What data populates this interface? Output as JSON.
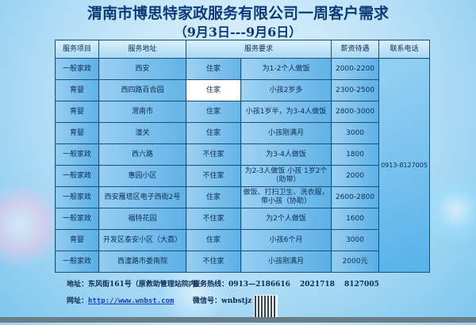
{
  "header": {
    "title": "渭南市博思特家政服务有限公司一周客户需求",
    "subtitle": "（9月3日---9月6日）"
  },
  "table": {
    "columns": [
      "服务项目",
      "服务地址",
      "服务要求",
      "薪资待遇",
      "联系电话"
    ],
    "phone": "0913-8127005",
    "rows": [
      {
        "type": "一般家政",
        "address": "西安",
        "live": "住家",
        "req": "为1-2个人做饭",
        "salary": "2000-2200"
      },
      {
        "type": "育婴",
        "address": "西四路百合园",
        "live": "住家",
        "req": "小孩2岁多",
        "salary": "2300-2500"
      },
      {
        "type": "育婴",
        "address": "渭南市",
        "live": "住家",
        "req": "小孩1岁半，为3-4人做饭",
        "salary": "2800-3000"
      },
      {
        "type": "育婴",
        "address": "潼关",
        "live": "住家",
        "req": "小孩刚满月",
        "salary": "3000"
      },
      {
        "type": "一般家政",
        "address": "西六路",
        "live": "不住家",
        "req": "为3-4人做饭",
        "salary": "1800"
      },
      {
        "type": "一般家政",
        "address": "惠园小区",
        "live": "不住家",
        "req": "为2-3人做饭 小孩 1岁2个（助带）",
        "salary": "2000"
      },
      {
        "type": "一般家政",
        "address": "西安雁塔区电子西街2号",
        "live": "住家",
        "req": "做饭、打扫卫生、洗衣服，带小孩（协助）",
        "salary": "2600-2800"
      },
      {
        "type": "一般家政",
        "address": "福特花园",
        "live": "不住家",
        "req": "为2个人做饭",
        "salary": "1600"
      },
      {
        "type": "育婴",
        "address": "开发区泰安小区（大荔）",
        "live": "住家",
        "req": "小孩6个月",
        "salary": "3000"
      },
      {
        "type": "一般家政",
        "address": "西潼路市委南院",
        "live": "不住家",
        "req": "小孩刚满月",
        "salary": "2000元"
      }
    ]
  },
  "footer": {
    "address_label": "地址：",
    "address": "东风街161号（原救助管理站院内）",
    "hotline_label": "服务热线：",
    "hotline": "0913—2186616　 2021718　 8127005",
    "web_label": "网址：",
    "web": "http://www.wnbst.com",
    "wechat_label": "微信号：",
    "wechat": "wnbstjz"
  },
  "colors": {
    "title": "#0a3a78",
    "border": "#1a4f7e",
    "cell": "#5aaee6"
  }
}
